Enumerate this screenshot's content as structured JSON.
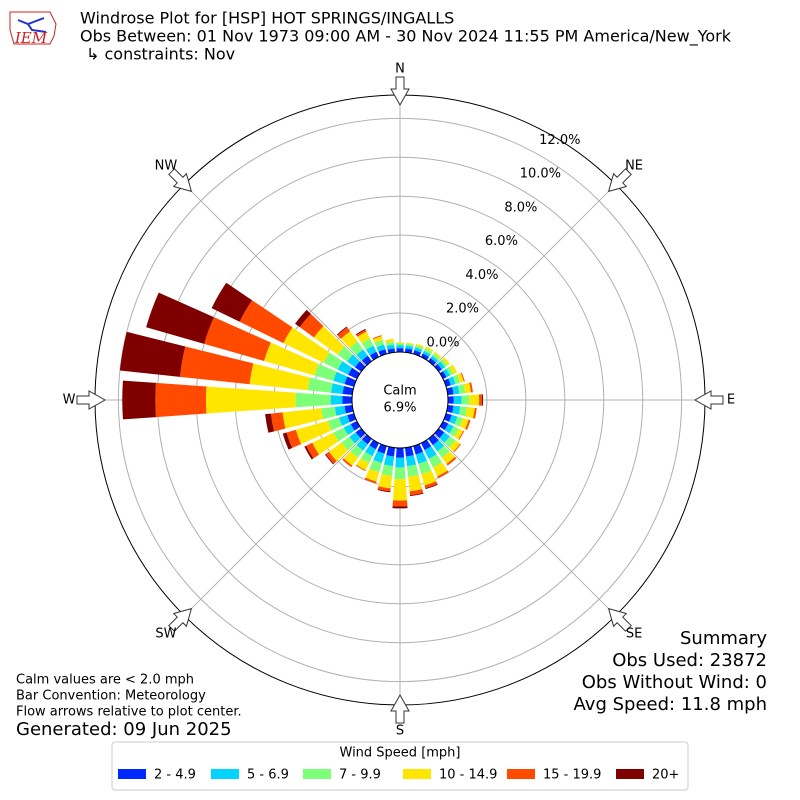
{
  "header": {
    "logo_text": "IEM",
    "title": "Windrose Plot for [HSP] HOT SPRINGS/INGALLS",
    "subtitle": "Obs Between: 01 Nov 1973 09:00 AM - 30 Nov 2024 11:55 PM America/New_York",
    "constraints": "↳ constraints: Nov"
  },
  "chart_data": {
    "type": "windrose",
    "directions": [
      0,
      10,
      20,
      30,
      40,
      50,
      60,
      70,
      80,
      90,
      100,
      110,
      120,
      130,
      140,
      150,
      160,
      170,
      180,
      190,
      200,
      210,
      220,
      230,
      240,
      250,
      260,
      270,
      280,
      290,
      300,
      310,
      320,
      330,
      340,
      350
    ],
    "direction_labels": [
      "N",
      "NE",
      "E",
      "SE",
      "S",
      "SW",
      "W",
      "NW"
    ],
    "ylim": [
      0,
      13.2
    ],
    "yticks": [
      {
        "value": 0,
        "label": "0.0%"
      },
      {
        "value": 2,
        "label": "2.0%"
      },
      {
        "value": 4,
        "label": "4.0%"
      },
      {
        "value": 6,
        "label": "6.0%"
      },
      {
        "value": 8,
        "label": "8.0%"
      },
      {
        "value": 10,
        "label": "10.0%"
      },
      {
        "value": 12,
        "label": "12.0%"
      }
    ],
    "grid": true,
    "calm_label": "Calm",
    "calm_value": 6.9,
    "calm_value_label": "6.9%",
    "legend_title": "Wind Speed [mph]",
    "series": [
      {
        "name": "2 - 4.9",
        "color": "#0028ff",
        "values": [
          0.2,
          0.2,
          0.2,
          0.2,
          0.2,
          0.2,
          0.2,
          0.25,
          0.3,
          0.3,
          0.3,
          0.3,
          0.3,
          0.35,
          0.4,
          0.4,
          0.45,
          0.45,
          0.5,
          0.45,
          0.4,
          0.35,
          0.35,
          0.35,
          0.35,
          0.35,
          0.4,
          0.5,
          0.5,
          0.5,
          0.5,
          0.4,
          0.35,
          0.3,
          0.25,
          0.2
        ]
      },
      {
        "name": "5 - 6.9",
        "color": "#00d4ff",
        "values": [
          0.15,
          0.15,
          0.15,
          0.15,
          0.15,
          0.2,
          0.2,
          0.25,
          0.3,
          0.4,
          0.35,
          0.3,
          0.3,
          0.35,
          0.4,
          0.5,
          0.5,
          0.5,
          0.5,
          0.5,
          0.5,
          0.4,
          0.4,
          0.4,
          0.4,
          0.45,
          0.5,
          0.6,
          0.6,
          0.6,
          0.6,
          0.5,
          0.4,
          0.35,
          0.25,
          0.2
        ]
      },
      {
        "name": "7 - 9.9",
        "color": "#7dff7a",
        "values": [
          0.1,
          0.1,
          0.12,
          0.15,
          0.15,
          0.15,
          0.2,
          0.25,
          0.3,
          0.4,
          0.35,
          0.3,
          0.3,
          0.35,
          0.4,
          0.5,
          0.55,
          0.55,
          0.6,
          0.5,
          0.5,
          0.4,
          0.45,
          0.5,
          0.6,
          0.6,
          0.7,
          1.8,
          1.2,
          1.0,
          0.8,
          0.6,
          0.5,
          0.4,
          0.25,
          0.15
        ]
      },
      {
        "name": "10 - 14.9",
        "color": "#ffe600",
        "values": [
          0.05,
          0.05,
          0.08,
          0.1,
          0.1,
          0.15,
          0.2,
          0.2,
          0.3,
          0.5,
          0.4,
          0.3,
          0.25,
          0.3,
          0.4,
          0.5,
          0.6,
          0.75,
          1.1,
          0.65,
          0.5,
          0.4,
          0.5,
          0.8,
          1.2,
          1.7,
          2.0,
          4.6,
          3.0,
          2.7,
          2.3,
          1.5,
          0.65,
          0.4,
          0.2,
          0.15
        ]
      },
      {
        "name": "15 - 19.9",
        "color": "#ff4a00",
        "values": [
          0,
          0,
          0,
          0,
          0,
          0,
          0,
          0.05,
          0.1,
          0.15,
          0.1,
          0.1,
          0.05,
          0.05,
          0.1,
          0.1,
          0.15,
          0.2,
          0.3,
          0.15,
          0.1,
          0.05,
          0.1,
          0.2,
          0.35,
          0.5,
          0.6,
          2.6,
          3.6,
          3.2,
          2.5,
          0.9,
          0.25,
          0.1,
          0.05,
          0
        ]
      },
      {
        "name": "20+",
        "color": "#800000",
        "values": [
          0,
          0,
          0,
          0,
          0,
          0,
          0,
          0,
          0,
          0.05,
          0,
          0,
          0,
          0,
          0,
          0,
          0.05,
          0.05,
          0.1,
          0.05,
          0,
          0,
          0,
          0.05,
          0.1,
          0.2,
          0.3,
          1.7,
          3.1,
          3.1,
          1.6,
          0.3,
          0.05,
          0.05,
          0,
          0
        ]
      }
    ]
  },
  "summary": {
    "title": "Summary",
    "obs_used": "Obs Used: 23872",
    "obs_without_wind": "Obs Without Wind: 0",
    "avg_speed": "Avg Speed: 11.8 mph"
  },
  "notes": [
    "Calm values are < 2.0 mph",
    "Bar Convention: Meteorology",
    "Flow arrows relative to plot center."
  ],
  "generated": "Generated: 09 Jun 2025"
}
